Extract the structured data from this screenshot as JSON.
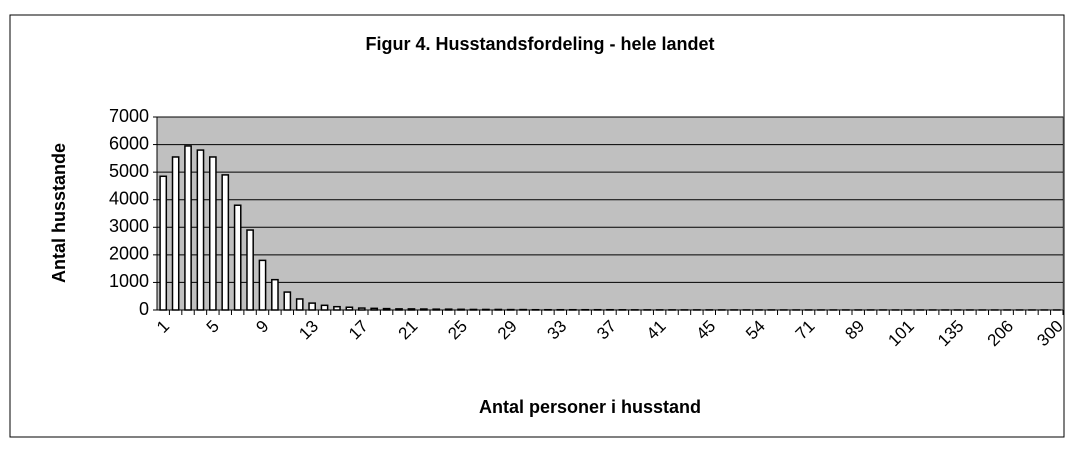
{
  "chart_data": {
    "type": "bar",
    "title": "Figur 4. Husstandsfordeling - hele landet",
    "xlabel": "Antal personer i husstand",
    "ylabel": "Antal husstande",
    "categories": [
      "1",
      null,
      null,
      null,
      "5",
      null,
      null,
      null,
      "9",
      null,
      null,
      null,
      "13",
      null,
      null,
      null,
      "17",
      null,
      null,
      null,
      "21",
      null,
      null,
      null,
      "25",
      null,
      null,
      null,
      "29",
      null,
      null,
      null,
      "33",
      null,
      null,
      null,
      "37",
      null,
      null,
      null,
      "41",
      null,
      null,
      null,
      "45",
      null,
      null,
      null,
      "54",
      null,
      null,
      null,
      "71",
      null,
      null,
      null,
      "89",
      null,
      null,
      null,
      "101",
      null,
      null,
      null,
      "135",
      null,
      null,
      null,
      "206",
      null,
      null,
      null,
      "300"
    ],
    "values": [
      4850,
      5550,
      5950,
      5800,
      5550,
      4900,
      3800,
      2900,
      1800,
      1100,
      650,
      400,
      250,
      170,
      120,
      100,
      70,
      60,
      50,
      40,
      40,
      35,
      30,
      30,
      25,
      20,
      20,
      20,
      15,
      15,
      10,
      10,
      10,
      10,
      10,
      10,
      10,
      8,
      6,
      5,
      5,
      5,
      4,
      4,
      4,
      3,
      3,
      3,
      3,
      3,
      2,
      2,
      2,
      2,
      2,
      2,
      2,
      2,
      2,
      1,
      1,
      1,
      1,
      1,
      1,
      1,
      1,
      1,
      1,
      1,
      1,
      1,
      1
    ],
    "color": "#ffffff",
    "ylim": [
      0,
      7000
    ],
    "yticks": [
      0,
      1000,
      2000,
      3000,
      4000,
      5000,
      6000,
      7000
    ],
    "grid": true
  }
}
